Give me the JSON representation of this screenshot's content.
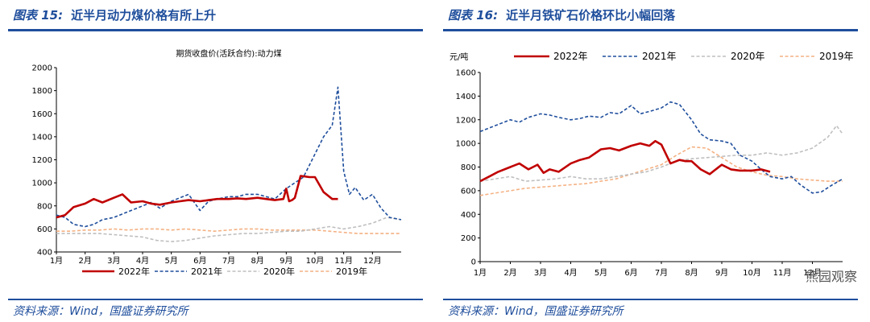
{
  "left": {
    "figure_label": "图表 15:",
    "figure_text": "近半月动力煤价格有所上升",
    "source": "资料来源：Wind，国盛证券研究所"
  },
  "right": {
    "figure_label": "图表 16:",
    "figure_text": "近半月铁矿石价格环比小幅回落",
    "source": "资料来源：Wind，国盛证券研究所"
  },
  "watermark": "熊园观察",
  "colors": {
    "2022": "#c00000",
    "2021": "#1f4e9c",
    "2020": "#bfbfbf",
    "2019": "#f4b183",
    "rule": "#1f4e9c"
  },
  "chart_data": [
    {
      "type": "line",
      "title": "期货收盘价(活跃合约):动力煤",
      "ylabel": "",
      "ylim": [
        400,
        2000
      ],
      "yticks": [
        400,
        600,
        800,
        1000,
        1200,
        1400,
        1600,
        1800,
        2000
      ],
      "categories": [
        "1月",
        "2月",
        "3月",
        "4月",
        "5月",
        "6月",
        "7月",
        "8月",
        "9月",
        "10月",
        "11月",
        "12月"
      ],
      "legend_position": "bottom",
      "series": [
        {
          "name": "2022年",
          "style": "solid",
          "x": [
            0,
            0.3,
            0.6,
            1.0,
            1.3,
            1.6,
            2.0,
            2.3,
            2.6,
            3.0,
            3.3,
            3.6,
            4.0,
            4.3,
            4.6,
            5.0,
            5.3,
            5.6,
            6.0,
            6.3,
            6.6,
            7.0,
            7.3,
            7.6,
            7.9,
            8.0,
            8.1,
            8.2,
            8.3,
            8.5,
            8.8,
            9.0,
            9.3,
            9.6,
            9.8
          ],
          "y": [
            700,
            720,
            790,
            820,
            860,
            830,
            870,
            900,
            830,
            840,
            820,
            810,
            830,
            840,
            850,
            840,
            850,
            860,
            860,
            865,
            860,
            870,
            860,
            850,
            860,
            950,
            840,
            850,
            870,
            1060,
            1050,
            1050,
            920,
            860,
            860
          ]
        },
        {
          "name": "2021年",
          "style": "dashed",
          "x": [
            0,
            0.3,
            0.6,
            1.0,
            1.3,
            1.6,
            2.0,
            2.3,
            2.6,
            3.0,
            3.3,
            3.6,
            4.0,
            4.3,
            4.6,
            5.0,
            5.3,
            5.6,
            6.0,
            6.3,
            6.6,
            7.0,
            7.3,
            7.6,
            8.0,
            8.3,
            8.6,
            9.0,
            9.3,
            9.6,
            9.8,
            10.0,
            10.2,
            10.4,
            10.7,
            11.0,
            11.3,
            11.6,
            12.0
          ],
          "y": [
            720,
            700,
            640,
            620,
            640,
            680,
            700,
            730,
            760,
            800,
            830,
            780,
            840,
            870,
            900,
            760,
            840,
            860,
            880,
            880,
            900,
            900,
            880,
            860,
            950,
            1000,
            1050,
            1250,
            1400,
            1500,
            1830,
            1100,
            900,
            960,
            850,
            900,
            780,
            700,
            680
          ]
        },
        {
          "name": "2020年",
          "style": "dashed",
          "x": [
            0,
            0.5,
            1.0,
            1.5,
            2.0,
            2.5,
            3.0,
            3.5,
            4.0,
            4.5,
            5.0,
            5.5,
            6.0,
            6.5,
            7.0,
            7.5,
            8.0,
            8.5,
            9.0,
            9.5,
            10.0,
            10.5,
            11.0,
            11.5,
            12.0
          ],
          "y": [
            560,
            560,
            560,
            560,
            550,
            540,
            530,
            500,
            490,
            500,
            520,
            540,
            550,
            560,
            560,
            570,
            580,
            580,
            600,
            620,
            600,
            620,
            650,
            700,
            680
          ]
        },
        {
          "name": "2019年",
          "style": "dashed",
          "x": [
            0,
            0.5,
            1.0,
            1.5,
            2.0,
            2.5,
            3.0,
            3.5,
            4.0,
            4.5,
            5.0,
            5.5,
            6.0,
            6.5,
            7.0,
            7.5,
            8.0,
            8.5,
            9.0,
            9.5,
            10.0,
            10.5,
            11.0,
            11.5,
            12.0
          ],
          "y": [
            580,
            580,
            590,
            590,
            600,
            590,
            600,
            600,
            590,
            600,
            590,
            580,
            590,
            600,
            600,
            590,
            590,
            590,
            590,
            580,
            570,
            560,
            560,
            560,
            560
          ]
        }
      ]
    },
    {
      "type": "line",
      "title": "",
      "ylabel": "元/吨",
      "ylim": [
        0,
        1600
      ],
      "yticks": [
        0,
        200,
        400,
        600,
        800,
        1000,
        1200,
        1400,
        1600
      ],
      "categories": [
        "1月",
        "2月",
        "3月",
        "4月",
        "5月",
        "6月",
        "7月",
        "8月",
        "9月",
        "10月",
        "11月",
        "12月"
      ],
      "legend_position": "top",
      "series": [
        {
          "name": "2022年",
          "style": "solid",
          "x": [
            0,
            0.3,
            0.6,
            1.0,
            1.3,
            1.6,
            1.9,
            2.1,
            2.3,
            2.6,
            3.0,
            3.3,
            3.6,
            4.0,
            4.3,
            4.6,
            5.0,
            5.3,
            5.6,
            5.8,
            6.0,
            6.3,
            6.6,
            6.8,
            7.0,
            7.3,
            7.6,
            8.0,
            8.3,
            8.6,
            9.0,
            9.3,
            9.6
          ],
          "y": [
            680,
            720,
            760,
            800,
            830,
            780,
            820,
            750,
            780,
            760,
            830,
            860,
            880,
            950,
            960,
            940,
            980,
            1000,
            980,
            1020,
            990,
            830,
            860,
            850,
            850,
            780,
            740,
            820,
            780,
            770,
            770,
            780,
            760
          ]
        },
        {
          "name": "2021年",
          "style": "dashed",
          "x": [
            0,
            0.3,
            0.6,
            1.0,
            1.3,
            1.6,
            2.0,
            2.3,
            2.6,
            3.0,
            3.3,
            3.6,
            4.0,
            4.3,
            4.6,
            5.0,
            5.3,
            5.6,
            6.0,
            6.3,
            6.6,
            7.0,
            7.3,
            7.6,
            8.0,
            8.3,
            8.6,
            9.0,
            9.3,
            9.6,
            10.0,
            10.3,
            10.6,
            11.0,
            11.3,
            11.6,
            12.0
          ],
          "y": [
            1100,
            1130,
            1160,
            1200,
            1180,
            1220,
            1250,
            1240,
            1220,
            1200,
            1210,
            1230,
            1220,
            1260,
            1250,
            1320,
            1250,
            1270,
            1300,
            1350,
            1330,
            1200,
            1080,
            1030,
            1020,
            1000,
            900,
            850,
            780,
            720,
            700,
            720,
            650,
            580,
            590,
            640,
            700
          ]
        },
        {
          "name": "2020年",
          "style": "dashed",
          "x": [
            0,
            0.5,
            1.0,
            1.5,
            2.0,
            2.5,
            3.0,
            3.5,
            4.0,
            4.5,
            5.0,
            5.5,
            6.0,
            6.5,
            7.0,
            7.5,
            8.0,
            8.5,
            9.0,
            9.5,
            10.0,
            10.5,
            11.0,
            11.5,
            11.8,
            12.0
          ],
          "y": [
            680,
            700,
            720,
            680,
            690,
            700,
            720,
            700,
            700,
            720,
            740,
            760,
            800,
            850,
            870,
            880,
            890,
            900,
            900,
            920,
            900,
            920,
            960,
            1050,
            1150,
            1080
          ]
        },
        {
          "name": "2019年",
          "style": "dashed",
          "x": [
            0,
            0.5,
            1.0,
            1.5,
            2.0,
            2.5,
            3.0,
            3.5,
            4.0,
            4.5,
            5.0,
            5.5,
            6.0,
            6.5,
            7.0,
            7.5,
            8.0,
            8.5,
            9.0,
            9.5,
            10.0,
            10.5,
            11.0,
            11.5,
            12.0
          ],
          "y": [
            560,
            580,
            600,
            620,
            630,
            640,
            650,
            660,
            680,
            700,
            740,
            780,
            820,
            900,
            970,
            960,
            880,
            800,
            760,
            730,
            720,
            700,
            690,
            680,
            680
          ]
        }
      ]
    }
  ]
}
